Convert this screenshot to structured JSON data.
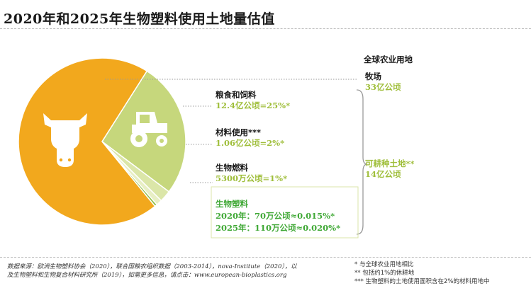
{
  "chart_data": {
    "type": "pie",
    "title": "2020年和2025年生物塑料使用土地量估值",
    "slices": [
      {
        "name": "牧场",
        "value": 33,
        "unit": "亿公顷",
        "color": "#f2a81d"
      },
      {
        "name": "粮食和饲料",
        "value": 12.4,
        "unit": "亿公顷",
        "color": "#c6d77c"
      },
      {
        "name": "材料使用",
        "value": 1.06,
        "unit": "亿公顷",
        "color": "#dbe6a8"
      },
      {
        "name": "生物燃料",
        "value": 0.53,
        "unit": "亿公顷",
        "color": "#e8efc4"
      },
      {
        "name": "生物塑料",
        "value": 0.011,
        "unit": "亿公顷",
        "color": "#8fc04a"
      }
    ]
  },
  "labels": {
    "total": "全球农业用地",
    "pasture": {
      "name": "牧场",
      "value": "33亿公顷"
    },
    "food": {
      "name": "粮食和饲料",
      "value": "12.4亿公顷=25%*"
    },
    "material": {
      "name": "材料使用***",
      "value": "1.06亿公顷=2%*"
    },
    "biofuel": {
      "name": "生物燃料",
      "value": "5300万公顷=1%*"
    },
    "arable": {
      "name": "可耕种土地**",
      "value": "14亿公顷"
    },
    "bioplastic": {
      "name": "生物塑料",
      "y2020": "2020年：70万公顷≈0.015%*",
      "y2025": "2025年：110万公顷≈0.020%*"
    }
  },
  "icons": {
    "pasture": "cow-icon",
    "food": "tractor-icon"
  },
  "footer": {
    "source_line1": "数据来源：欧洲生物塑料协会（2020），联合国粮农组织数据（2003-2014），nova-Institute（2020），以",
    "source_line2": "及生物塑料和生物复合材料研究所（2019），如需更多信息，请点击：www.european-bioplastics.org",
    "note1": "*  与全球农业用地相比",
    "note2": "**  包括约1%的休耕地",
    "note3": "***  生物塑料的土地使用面积含在2%的材料用地中"
  }
}
